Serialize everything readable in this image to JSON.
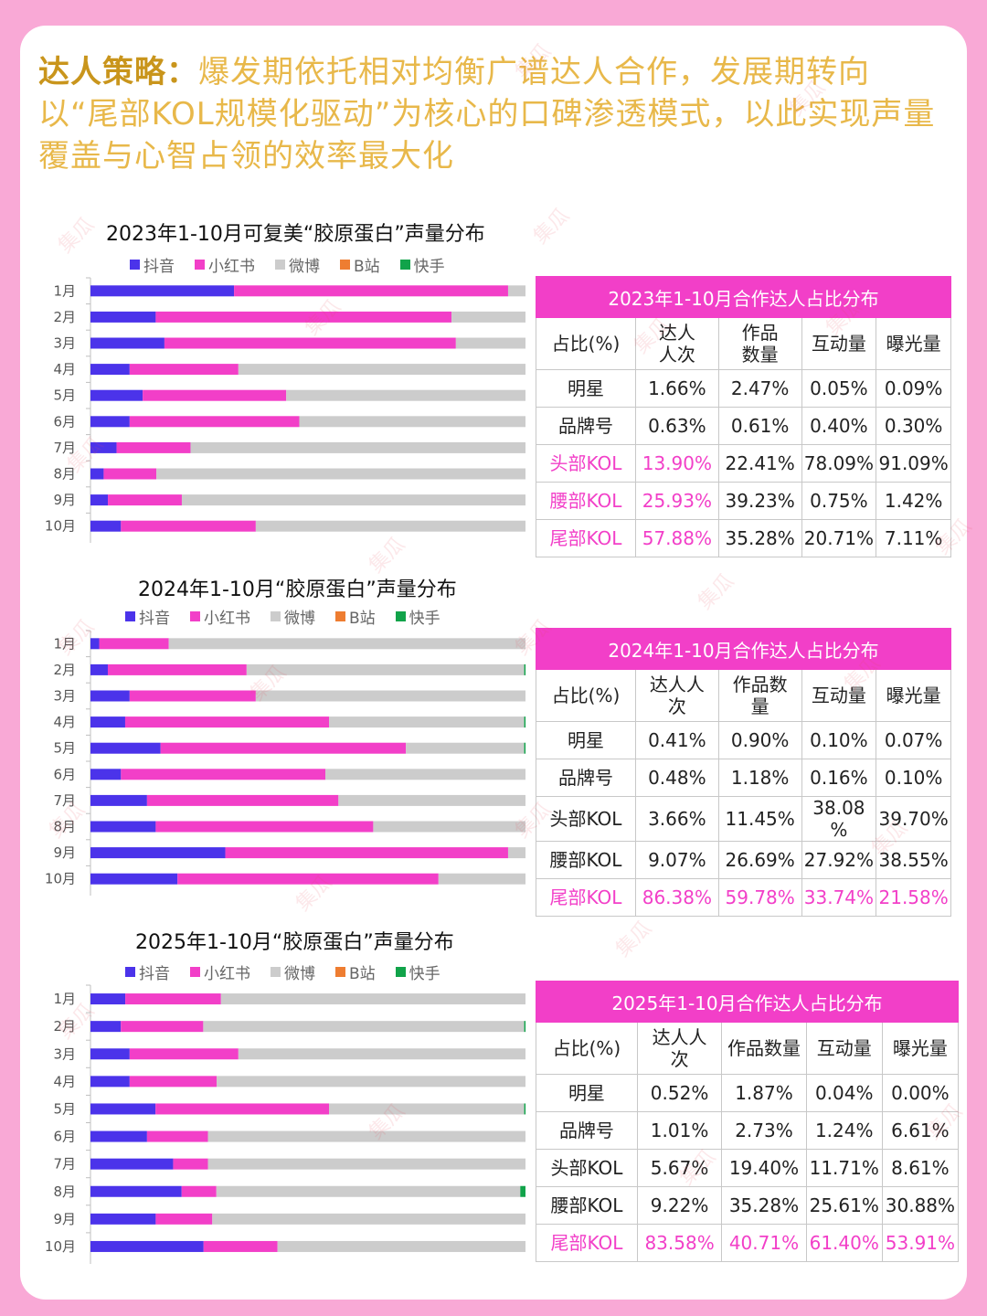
{
  "headline": {
    "label": "达人策略：",
    "text": "爆发期依托相对均衡广谱达人合作，发展期转向以“尾部KOL规模化驱动”为核心的口碑渗透模式，以此实现声量覆盖与心智占领的效率最大化"
  },
  "watermark": "集瓜",
  "colors": {
    "douyin": "#4b33ea",
    "xiaohongshu": "#f23fc8",
    "weibo": "#cccccc",
    "bilibili": "#ee7d31",
    "kuaishou": "#11a34a",
    "accent": "#f23fc8",
    "headline": "#e8b84a"
  },
  "legend": [
    "抖音",
    "小红书",
    "微博",
    "B站",
    "快手"
  ],
  "chart_data": [
    {
      "type": "bar",
      "orientation": "horizontal",
      "stacked": "percent",
      "title": "2023年1-10月可复美“胶原蛋白”声量分布",
      "categories": [
        "1月",
        "2月",
        "3月",
        "4月",
        "5月",
        "6月",
        "7月",
        "8月",
        "9月",
        "10月"
      ],
      "series": [
        {
          "name": "抖音",
          "values": [
            33,
            15,
            17,
            9,
            12,
            9,
            6,
            3,
            4,
            7
          ]
        },
        {
          "name": "小红书",
          "values": [
            63,
            68,
            67,
            25,
            33,
            39,
            17,
            12,
            17,
            31
          ]
        },
        {
          "name": "微博",
          "values": [
            4,
            17,
            16,
            66,
            55,
            52,
            77,
            84,
            79,
            62
          ]
        },
        {
          "name": "B站",
          "values": [
            0,
            0,
            0,
            0,
            0,
            0,
            0,
            0,
            0,
            0
          ]
        },
        {
          "name": "快手",
          "values": [
            0,
            0,
            0,
            0,
            0,
            0,
            0,
            0,
            0,
            0
          ]
        }
      ],
      "xlim": [
        0,
        100
      ],
      "legend": "top"
    },
    {
      "type": "bar",
      "orientation": "horizontal",
      "stacked": "percent",
      "title": "2024年1-10月“胶原蛋白”声量分布",
      "categories": [
        "1月",
        "2月",
        "3月",
        "4月",
        "5月",
        "6月",
        "7月",
        "8月",
        "9月",
        "10月"
      ],
      "series": [
        {
          "name": "抖音",
          "values": [
            2,
            4,
            9,
            8,
            16,
            7,
            13,
            15,
            31,
            20
          ]
        },
        {
          "name": "小红书",
          "values": [
            16,
            32,
            29,
            47,
            56,
            47,
            44,
            50,
            65,
            60
          ]
        },
        {
          "name": "微博",
          "values": [
            82,
            64,
            62,
            45,
            27,
            46,
            43,
            35,
            4,
            20
          ]
        },
        {
          "name": "B站",
          "values": [
            0,
            0,
            0,
            0,
            0,
            0,
            0,
            0,
            0,
            0
          ]
        },
        {
          "name": "快手",
          "values": [
            0,
            0.3,
            0,
            0.3,
            0.3,
            0,
            0,
            0,
            0,
            0
          ]
        }
      ],
      "xlim": [
        0,
        100
      ],
      "legend": "top"
    },
    {
      "type": "bar",
      "orientation": "horizontal",
      "stacked": "percent",
      "title": "2025年1-10月“胶原蛋白”声量分布",
      "categories": [
        "1月",
        "2月",
        "3月",
        "4月",
        "5月",
        "6月",
        "7月",
        "8月",
        "9月",
        "10月"
      ],
      "series": [
        {
          "name": "抖音",
          "values": [
            8,
            7,
            9,
            9,
            15,
            13,
            19,
            21,
            15,
            26
          ]
        },
        {
          "name": "小红书",
          "values": [
            22,
            19,
            25,
            20,
            40,
            14,
            8,
            8,
            13,
            17
          ]
        },
        {
          "name": "微博",
          "values": [
            70,
            74,
            66,
            71,
            45,
            73,
            73,
            70,
            72,
            57
          ]
        },
        {
          "name": "B站",
          "values": [
            0,
            0,
            0,
            0,
            0,
            0,
            0,
            0,
            0,
            0
          ]
        },
        {
          "name": "快手",
          "values": [
            0,
            0.3,
            0,
            0,
            0.3,
            0,
            0,
            1.2,
            0,
            0
          ]
        }
      ],
      "xlim": [
        0,
        100
      ],
      "legend": "top"
    }
  ],
  "tables": [
    {
      "title": "2023年1-10月合作达人占比分布",
      "headers": [
        "占比(%)",
        "达人\n人次",
        "作品\n数量",
        "互动量",
        "曝光量"
      ],
      "rows": [
        {
          "label": "明星",
          "values": [
            "1.66%",
            "2.47%",
            "0.05%",
            "0.09%"
          ],
          "pink": [
            false,
            false,
            false,
            false,
            false
          ]
        },
        {
          "label": "品牌号",
          "values": [
            "0.63%",
            "0.61%",
            "0.40%",
            "0.30%"
          ],
          "pink": [
            false,
            false,
            false,
            false,
            false
          ]
        },
        {
          "label": "头部KOL",
          "values": [
            "13.90%",
            "22.41%",
            "78.09%",
            "91.09%"
          ],
          "pink": [
            true,
            true,
            false,
            false,
            false
          ]
        },
        {
          "label": "腰部KOL",
          "values": [
            "25.93%",
            "39.23%",
            "0.75%",
            "1.42%"
          ],
          "pink": [
            true,
            true,
            false,
            false,
            false
          ]
        },
        {
          "label": "尾部KOL",
          "values": [
            "57.88%",
            "35.28%",
            "20.71%",
            "7.11%"
          ],
          "pink": [
            true,
            true,
            false,
            false,
            false
          ]
        }
      ]
    },
    {
      "title": "2024年1-10月合作达人占比分布",
      "headers": [
        "占比(%)",
        "达人人\n次",
        "作品数\n量",
        "互动量",
        "曝光量"
      ],
      "rows": [
        {
          "label": "明星",
          "values": [
            "0.41%",
            "0.90%",
            "0.10%",
            "0.07%"
          ],
          "pink": [
            false,
            false,
            false,
            false,
            false
          ]
        },
        {
          "label": "品牌号",
          "values": [
            "0.48%",
            "1.18%",
            "0.16%",
            "0.10%"
          ],
          "pink": [
            false,
            false,
            false,
            false,
            false
          ]
        },
        {
          "label": "头部KOL",
          "values": [
            "3.66%",
            "11.45%",
            "38.08\n%",
            "39.70%"
          ],
          "pink": [
            false,
            false,
            false,
            false,
            false
          ]
        },
        {
          "label": "腰部KOL",
          "values": [
            "9.07%",
            "26.69%",
            "27.92%",
            "38.55%"
          ],
          "pink": [
            false,
            false,
            false,
            false,
            false
          ]
        },
        {
          "label": "尾部KOL",
          "values": [
            "86.38%",
            "59.78%",
            "33.74%",
            "21.58%"
          ],
          "pink": [
            true,
            true,
            true,
            true,
            true
          ]
        }
      ]
    },
    {
      "title": "2025年1-10月合作达人占比分布",
      "headers": [
        "占比(%)",
        "达人人\n次",
        "作品数量",
        "互动量",
        "曝光量"
      ],
      "rows": [
        {
          "label": "明星",
          "values": [
            "0.52%",
            "1.87%",
            "0.04%",
            "0.00%"
          ],
          "pink": [
            false,
            false,
            false,
            false,
            false
          ]
        },
        {
          "label": "品牌号",
          "values": [
            "1.01%",
            "2.73%",
            "1.24%",
            "6.61%"
          ],
          "pink": [
            false,
            false,
            false,
            false,
            false
          ]
        },
        {
          "label": "头部KOL",
          "values": [
            "5.67%",
            "19.40%",
            "11.71%",
            "8.61%"
          ],
          "pink": [
            false,
            false,
            false,
            false,
            false
          ]
        },
        {
          "label": "腰部KOL",
          "values": [
            "9.22%",
            "35.28%",
            "25.61%",
            "30.88%"
          ],
          "pink": [
            false,
            false,
            false,
            false,
            false
          ]
        },
        {
          "label": "尾部KOL",
          "values": [
            "83.58%",
            "40.71%",
            "61.40%",
            "53.91%"
          ],
          "pink": [
            true,
            true,
            true,
            true,
            true
          ]
        }
      ]
    }
  ]
}
